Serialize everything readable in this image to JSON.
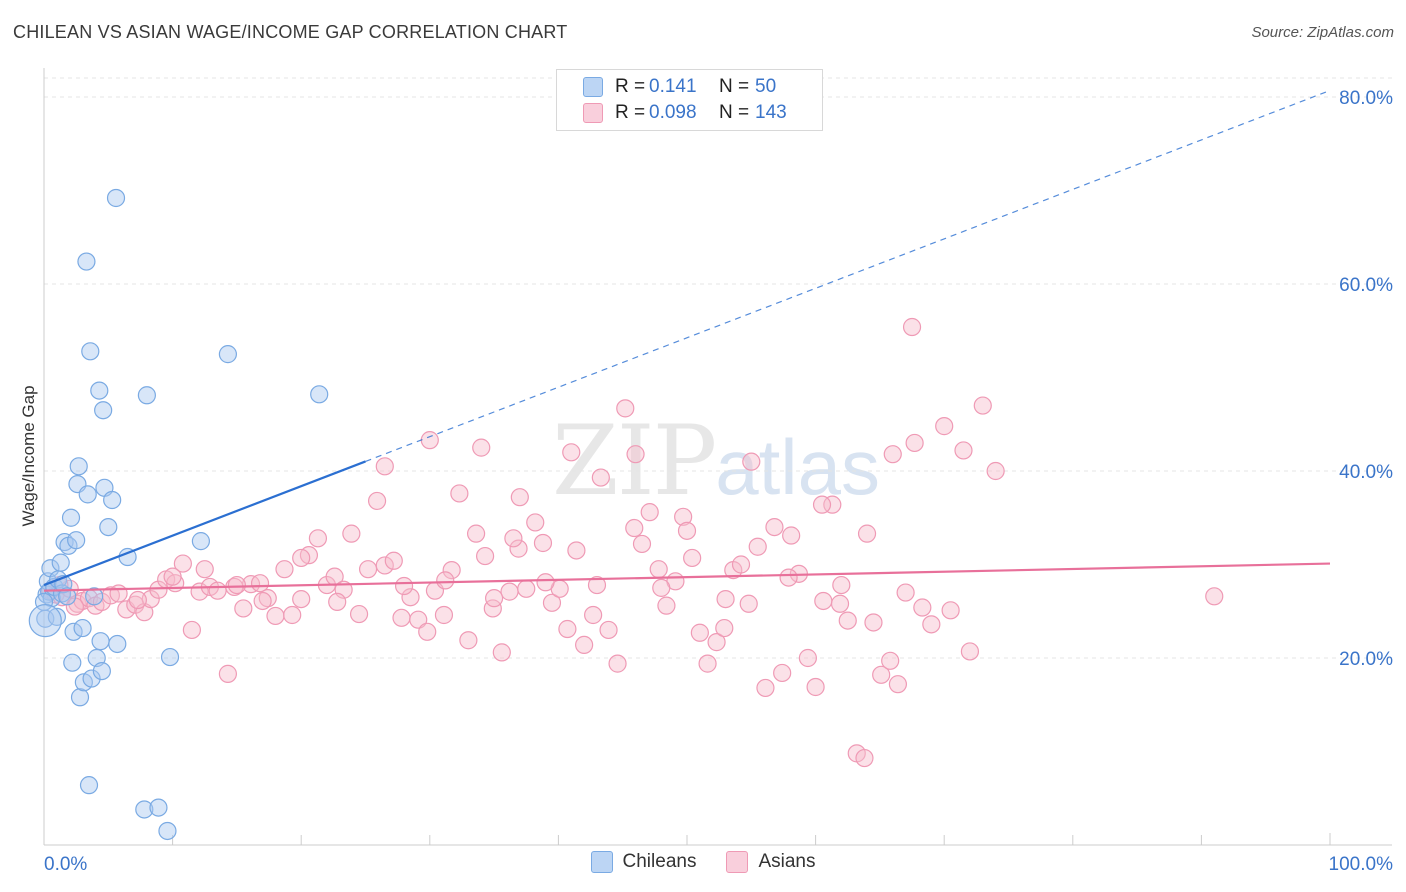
{
  "header": {
    "title": "CHILEAN VS ASIAN WAGE/INCOME GAP CORRELATION CHART",
    "source": "Source: ZipAtlas.com"
  },
  "watermark": {
    "zip": "ZIP",
    "atlas": "atlas"
  },
  "legend": {
    "rows": [
      {
        "r_label": "R =",
        "r_value": "0.141",
        "n_label": "N =",
        "n_value": "50"
      },
      {
        "r_label": "R =",
        "r_value": "0.098",
        "n_label": "N =",
        "n_value": "143"
      }
    ]
  },
  "bottom_legend": {
    "chileans": "Chileans",
    "asians": "Asians"
  },
  "colors": {
    "chileans_fill": "#a9c8f0",
    "chileans_stroke": "#7aaae3",
    "chileans_line": "#2b6fd1",
    "asians_fill": "#f6bccd",
    "asians_stroke": "#ef9ab5",
    "asians_line": "#e8709a",
    "tick_label": "#3a74c9",
    "grid": "#e4e4e4"
  },
  "chart_data": {
    "type": "scatter",
    "title": "CHILEAN VS ASIAN WAGE/INCOME GAP CORRELATION CHART",
    "xlabel": "",
    "ylabel": "Wage/Income Gap",
    "xlim": [
      0,
      100
    ],
    "ylim": [
      0,
      80
    ],
    "x_tick_labels": [
      "0.0%",
      "100.0%"
    ],
    "y_ticks": [
      20,
      40,
      60,
      80
    ],
    "y_tick_labels": [
      "20.0%",
      "40.0%",
      "60.0%",
      "80.0%"
    ],
    "series": [
      {
        "name": "Chileans",
        "r": 0.141,
        "n": 50,
        "trend": {
          "x0": 0,
          "y0": 27.8,
          "x1": 100,
          "y1": 80.7,
          "solid_until_x": 25
        },
        "points": [
          [
            0.1,
            24.2
          ],
          [
            0.2,
            26.8
          ],
          [
            0.3,
            28.2
          ],
          [
            0.4,
            27.1
          ],
          [
            0.5,
            29.6
          ],
          [
            0.6,
            26.4
          ],
          [
            0.8,
            27.6
          ],
          [
            1.0,
            24.4
          ],
          [
            1.1,
            28.4
          ],
          [
            1.3,
            30.2
          ],
          [
            1.4,
            26.9
          ],
          [
            1.5,
            27.9
          ],
          [
            1.6,
            32.4
          ],
          [
            1.8,
            26.6
          ],
          [
            1.9,
            32.0
          ],
          [
            2.1,
            35.0
          ],
          [
            2.2,
            19.5
          ],
          [
            2.3,
            22.8
          ],
          [
            2.5,
            32.6
          ],
          [
            2.6,
            38.6
          ],
          [
            2.7,
            40.5
          ],
          [
            2.8,
            15.8
          ],
          [
            3.0,
            23.2
          ],
          [
            3.1,
            17.4
          ],
          [
            3.3,
            62.4
          ],
          [
            3.4,
            37.5
          ],
          [
            3.5,
            6.4
          ],
          [
            3.6,
            52.8
          ],
          [
            3.7,
            17.8
          ],
          [
            3.9,
            26.6
          ],
          [
            4.1,
            20.0
          ],
          [
            4.3,
            48.6
          ],
          [
            4.4,
            21.8
          ],
          [
            4.5,
            18.6
          ],
          [
            4.6,
            46.5
          ],
          [
            4.7,
            38.2
          ],
          [
            5.0,
            34.0
          ],
          [
            5.3,
            36.9
          ],
          [
            5.6,
            69.2
          ],
          [
            5.7,
            21.5
          ],
          [
            6.5,
            30.8
          ],
          [
            7.8,
            3.8
          ],
          [
            8.0,
            48.1
          ],
          [
            8.9,
            4.0
          ],
          [
            9.6,
            1.5
          ],
          [
            9.8,
            20.1
          ],
          [
            12.2,
            32.5
          ],
          [
            14.3,
            52.5
          ],
          [
            21.4,
            48.2
          ],
          [
            0.0,
            26.0
          ]
        ]
      },
      {
        "name": "Asians",
        "r": 0.098,
        "n": 143,
        "trend": {
          "x0": 0,
          "y0": 27.2,
          "x1": 100,
          "y1": 30.1
        },
        "points": [
          [
            0.5,
            27.2
          ],
          [
            0.9,
            26.8
          ],
          [
            1.4,
            26.5
          ],
          [
            2.0,
            27.4
          ],
          [
            2.6,
            25.8
          ],
          [
            3.0,
            26.1
          ],
          [
            3.5,
            26.4
          ],
          [
            4.0,
            25.6
          ],
          [
            4.5,
            26.0
          ],
          [
            5.2,
            26.7
          ],
          [
            5.8,
            26.9
          ],
          [
            6.4,
            25.2
          ],
          [
            7.1,
            25.7
          ],
          [
            7.8,
            24.9
          ],
          [
            8.3,
            26.3
          ],
          [
            8.9,
            27.3
          ],
          [
            9.5,
            28.4
          ],
          [
            10.2,
            28.0
          ],
          [
            10.8,
            30.1
          ],
          [
            11.5,
            23.0
          ],
          [
            12.1,
            27.1
          ],
          [
            12.9,
            27.6
          ],
          [
            13.5,
            27.2
          ],
          [
            14.3,
            18.3
          ],
          [
            14.8,
            27.6
          ],
          [
            15.5,
            25.3
          ],
          [
            16.1,
            27.9
          ],
          [
            16.8,
            28.0
          ],
          [
            17.4,
            26.4
          ],
          [
            18.0,
            24.5
          ],
          [
            18.7,
            29.5
          ],
          [
            19.3,
            24.6
          ],
          [
            20.0,
            26.3
          ],
          [
            20.6,
            31.0
          ],
          [
            21.3,
            32.8
          ],
          [
            22.0,
            27.8
          ],
          [
            22.6,
            28.7
          ],
          [
            23.3,
            27.3
          ],
          [
            23.9,
            33.3
          ],
          [
            24.5,
            24.7
          ],
          [
            25.2,
            29.5
          ],
          [
            25.9,
            36.8
          ],
          [
            26.5,
            29.9
          ],
          [
            27.2,
            30.4
          ],
          [
            27.8,
            24.3
          ],
          [
            28.5,
            26.5
          ],
          [
            29.1,
            24.1
          ],
          [
            29.8,
            22.8
          ],
          [
            30.4,
            27.2
          ],
          [
            31.1,
            24.6
          ],
          [
            31.7,
            29.4
          ],
          [
            32.3,
            37.6
          ],
          [
            33.0,
            21.9
          ],
          [
            33.6,
            33.3
          ],
          [
            34.3,
            30.9
          ],
          [
            34.9,
            25.3
          ],
          [
            35.6,
            20.6
          ],
          [
            36.2,
            27.1
          ],
          [
            36.9,
            31.7
          ],
          [
            37.5,
            27.4
          ],
          [
            38.2,
            34.5
          ],
          [
            38.8,
            32.3
          ],
          [
            39.5,
            25.9
          ],
          [
            40.1,
            27.4
          ],
          [
            40.7,
            23.1
          ],
          [
            41.4,
            31.5
          ],
          [
            42.0,
            21.4
          ],
          [
            42.7,
            24.6
          ],
          [
            43.3,
            39.3
          ],
          [
            43.9,
            23.0
          ],
          [
            44.6,
            19.4
          ],
          [
            45.2,
            46.7
          ],
          [
            45.9,
            33.9
          ],
          [
            46.5,
            32.2
          ],
          [
            47.1,
            35.6
          ],
          [
            47.8,
            29.5
          ],
          [
            48.4,
            25.6
          ],
          [
            49.1,
            28.2
          ],
          [
            49.7,
            35.1
          ],
          [
            50.4,
            30.7
          ],
          [
            51.0,
            22.7
          ],
          [
            51.6,
            19.4
          ],
          [
            52.3,
            21.7
          ],
          [
            52.9,
            23.2
          ],
          [
            53.6,
            29.4
          ],
          [
            54.2,
            30.0
          ],
          [
            54.8,
            25.8
          ],
          [
            55.5,
            31.9
          ],
          [
            56.1,
            16.8
          ],
          [
            56.8,
            34.0
          ],
          [
            57.4,
            18.4
          ],
          [
            58.1,
            33.1
          ],
          [
            58.7,
            29.0
          ],
          [
            59.4,
            20.0
          ],
          [
            60.0,
            16.9
          ],
          [
            60.6,
            26.1
          ],
          [
            61.3,
            36.4
          ],
          [
            61.9,
            25.8
          ],
          [
            62.5,
            24.0
          ],
          [
            63.2,
            9.8
          ],
          [
            63.8,
            9.3
          ],
          [
            64.5,
            23.8
          ],
          [
            65.1,
            18.2
          ],
          [
            65.8,
            19.7
          ],
          [
            66.4,
            17.2
          ],
          [
            67.0,
            27.0
          ],
          [
            67.7,
            43.0
          ],
          [
            68.3,
            25.4
          ],
          [
            69.0,
            23.6
          ],
          [
            70.0,
            44.8
          ],
          [
            72.0,
            20.7
          ],
          [
            74.0,
            40.0
          ],
          [
            71.5,
            42.2
          ],
          [
            73.0,
            47.0
          ],
          [
            67.5,
            55.4
          ],
          [
            66.0,
            41.8
          ],
          [
            64.0,
            33.3
          ],
          [
            60.5,
            36.4
          ],
          [
            55.0,
            41.0
          ],
          [
            50.0,
            33.6
          ],
          [
            46.0,
            41.8
          ],
          [
            41.0,
            42.0
          ],
          [
            37.0,
            37.2
          ],
          [
            34.0,
            42.5
          ],
          [
            30.0,
            43.3
          ],
          [
            26.5,
            40.5
          ],
          [
            20.0,
            30.7
          ],
          [
            15.0,
            27.8
          ],
          [
            10.0,
            28.7
          ],
          [
            12.5,
            29.5
          ],
          [
            17.0,
            26.1
          ],
          [
            22.8,
            26.0
          ],
          [
            28.0,
            27.7
          ],
          [
            31.2,
            28.3
          ],
          [
            35.0,
            26.4
          ],
          [
            39.0,
            28.1
          ],
          [
            43.0,
            27.8
          ],
          [
            48.0,
            27.5
          ],
          [
            53.0,
            26.3
          ],
          [
            57.9,
            28.6
          ],
          [
            62.0,
            27.8
          ],
          [
            70.5,
            25.1
          ],
          [
            1.2,
            27.8
          ],
          [
            2.4,
            25.5
          ],
          [
            7.3,
            26.2
          ],
          [
            91.0,
            26.6
          ],
          [
            36.5,
            32.8
          ]
        ]
      }
    ]
  }
}
